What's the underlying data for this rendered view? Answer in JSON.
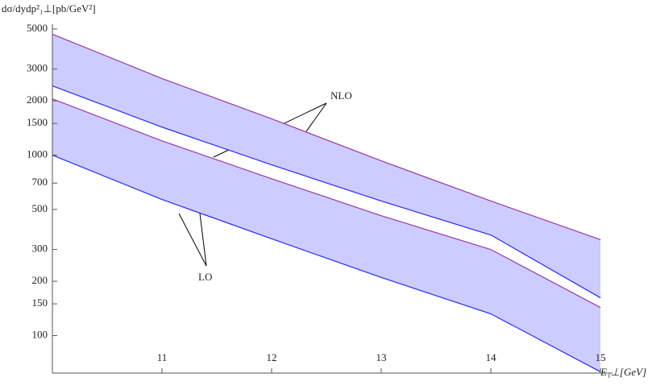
{
  "chart_data": {
    "type": "band",
    "y_label": "dσ/dydp²₁⊥[pb/GeV²]",
    "x_label": "E₁⊥[GeV]",
    "x": [
      10,
      11,
      12,
      13,
      14,
      15
    ],
    "bands": [
      {
        "name": "NLO",
        "upper_color": "#9a3aa6",
        "lower_color": "#2b2bee",
        "fill": "#ccccff",
        "upper": [
          4680,
          2660,
          1590,
          930,
          557,
          340
        ],
        "lower": [
          2420,
          1430,
          884,
          557,
          361,
          162
        ]
      },
      {
        "name": "LO",
        "upper_color": "#9a3aa6",
        "lower_color": "#2b2bee",
        "fill": "#ccccff",
        "upper": [
          2050,
          1200,
          740,
          462,
          300,
          143
        ],
        "lower": [
          1000,
          568,
          344,
          210,
          132,
          63
        ]
      }
    ],
    "xlim": [
      10,
      15
    ],
    "ylim": [
      62,
      5000
    ],
    "log_y": true,
    "xticks": [
      11,
      12,
      13,
      14,
      15
    ],
    "yticks": [
      100,
      150,
      200,
      300,
      500,
      700,
      1000,
      1500,
      2000,
      3000,
      5000
    ]
  }
}
